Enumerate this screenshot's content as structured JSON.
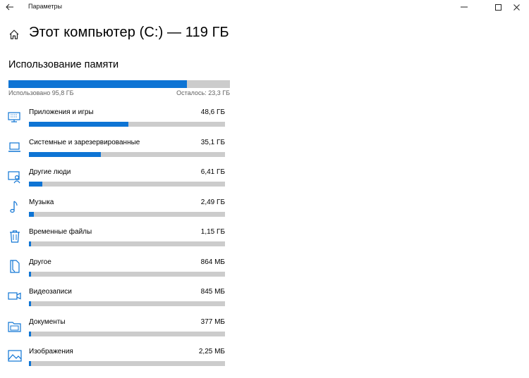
{
  "window": {
    "title": "Параметры",
    "back_icon": "back-arrow-icon",
    "minimize_glyph": "—",
    "maximize_glyph": "☐",
    "close_glyph": "✕"
  },
  "page": {
    "title": "Этот компьютер (C:) — 119 ГБ",
    "home_icon": "home-icon"
  },
  "usage": {
    "section_title": "Использование памяти",
    "used_label": "Использовано 95,8 ГБ",
    "free_label": "Осталось: 23,3 ГБ",
    "used_fraction": 0.805,
    "accent_color": "#0e74d4",
    "track_color": "#cccccc"
  },
  "categories": [
    {
      "name": "Приложения и игры",
      "size": "48,6 ГБ",
      "fraction": 0.508,
      "icon": "apps-icon"
    },
    {
      "name": "Системные и зарезервированные",
      "size": "35,1 ГБ",
      "fraction": 0.366,
      "icon": "laptop-icon"
    },
    {
      "name": "Другие люди",
      "size": "6,41 ГБ",
      "fraction": 0.067,
      "icon": "other-people-icon"
    },
    {
      "name": "Музыка",
      "size": "2,49 ГБ",
      "fraction": 0.026,
      "icon": "music-icon"
    },
    {
      "name": "Временные файлы",
      "size": "1,15 ГБ",
      "fraction": 0.012,
      "icon": "trash-icon"
    },
    {
      "name": "Другое",
      "size": "864 МБ",
      "fraction": 0.009,
      "icon": "other-file-icon"
    },
    {
      "name": "Видеозаписи",
      "size": "845 МБ",
      "fraction": 0.009,
      "icon": "video-icon"
    },
    {
      "name": "Документы",
      "size": "377 МБ",
      "fraction": 0.004,
      "icon": "documents-folder-icon"
    },
    {
      "name": "Изображения",
      "size": "2,25 МБ",
      "fraction": 0.001,
      "icon": "pictures-icon"
    }
  ]
}
